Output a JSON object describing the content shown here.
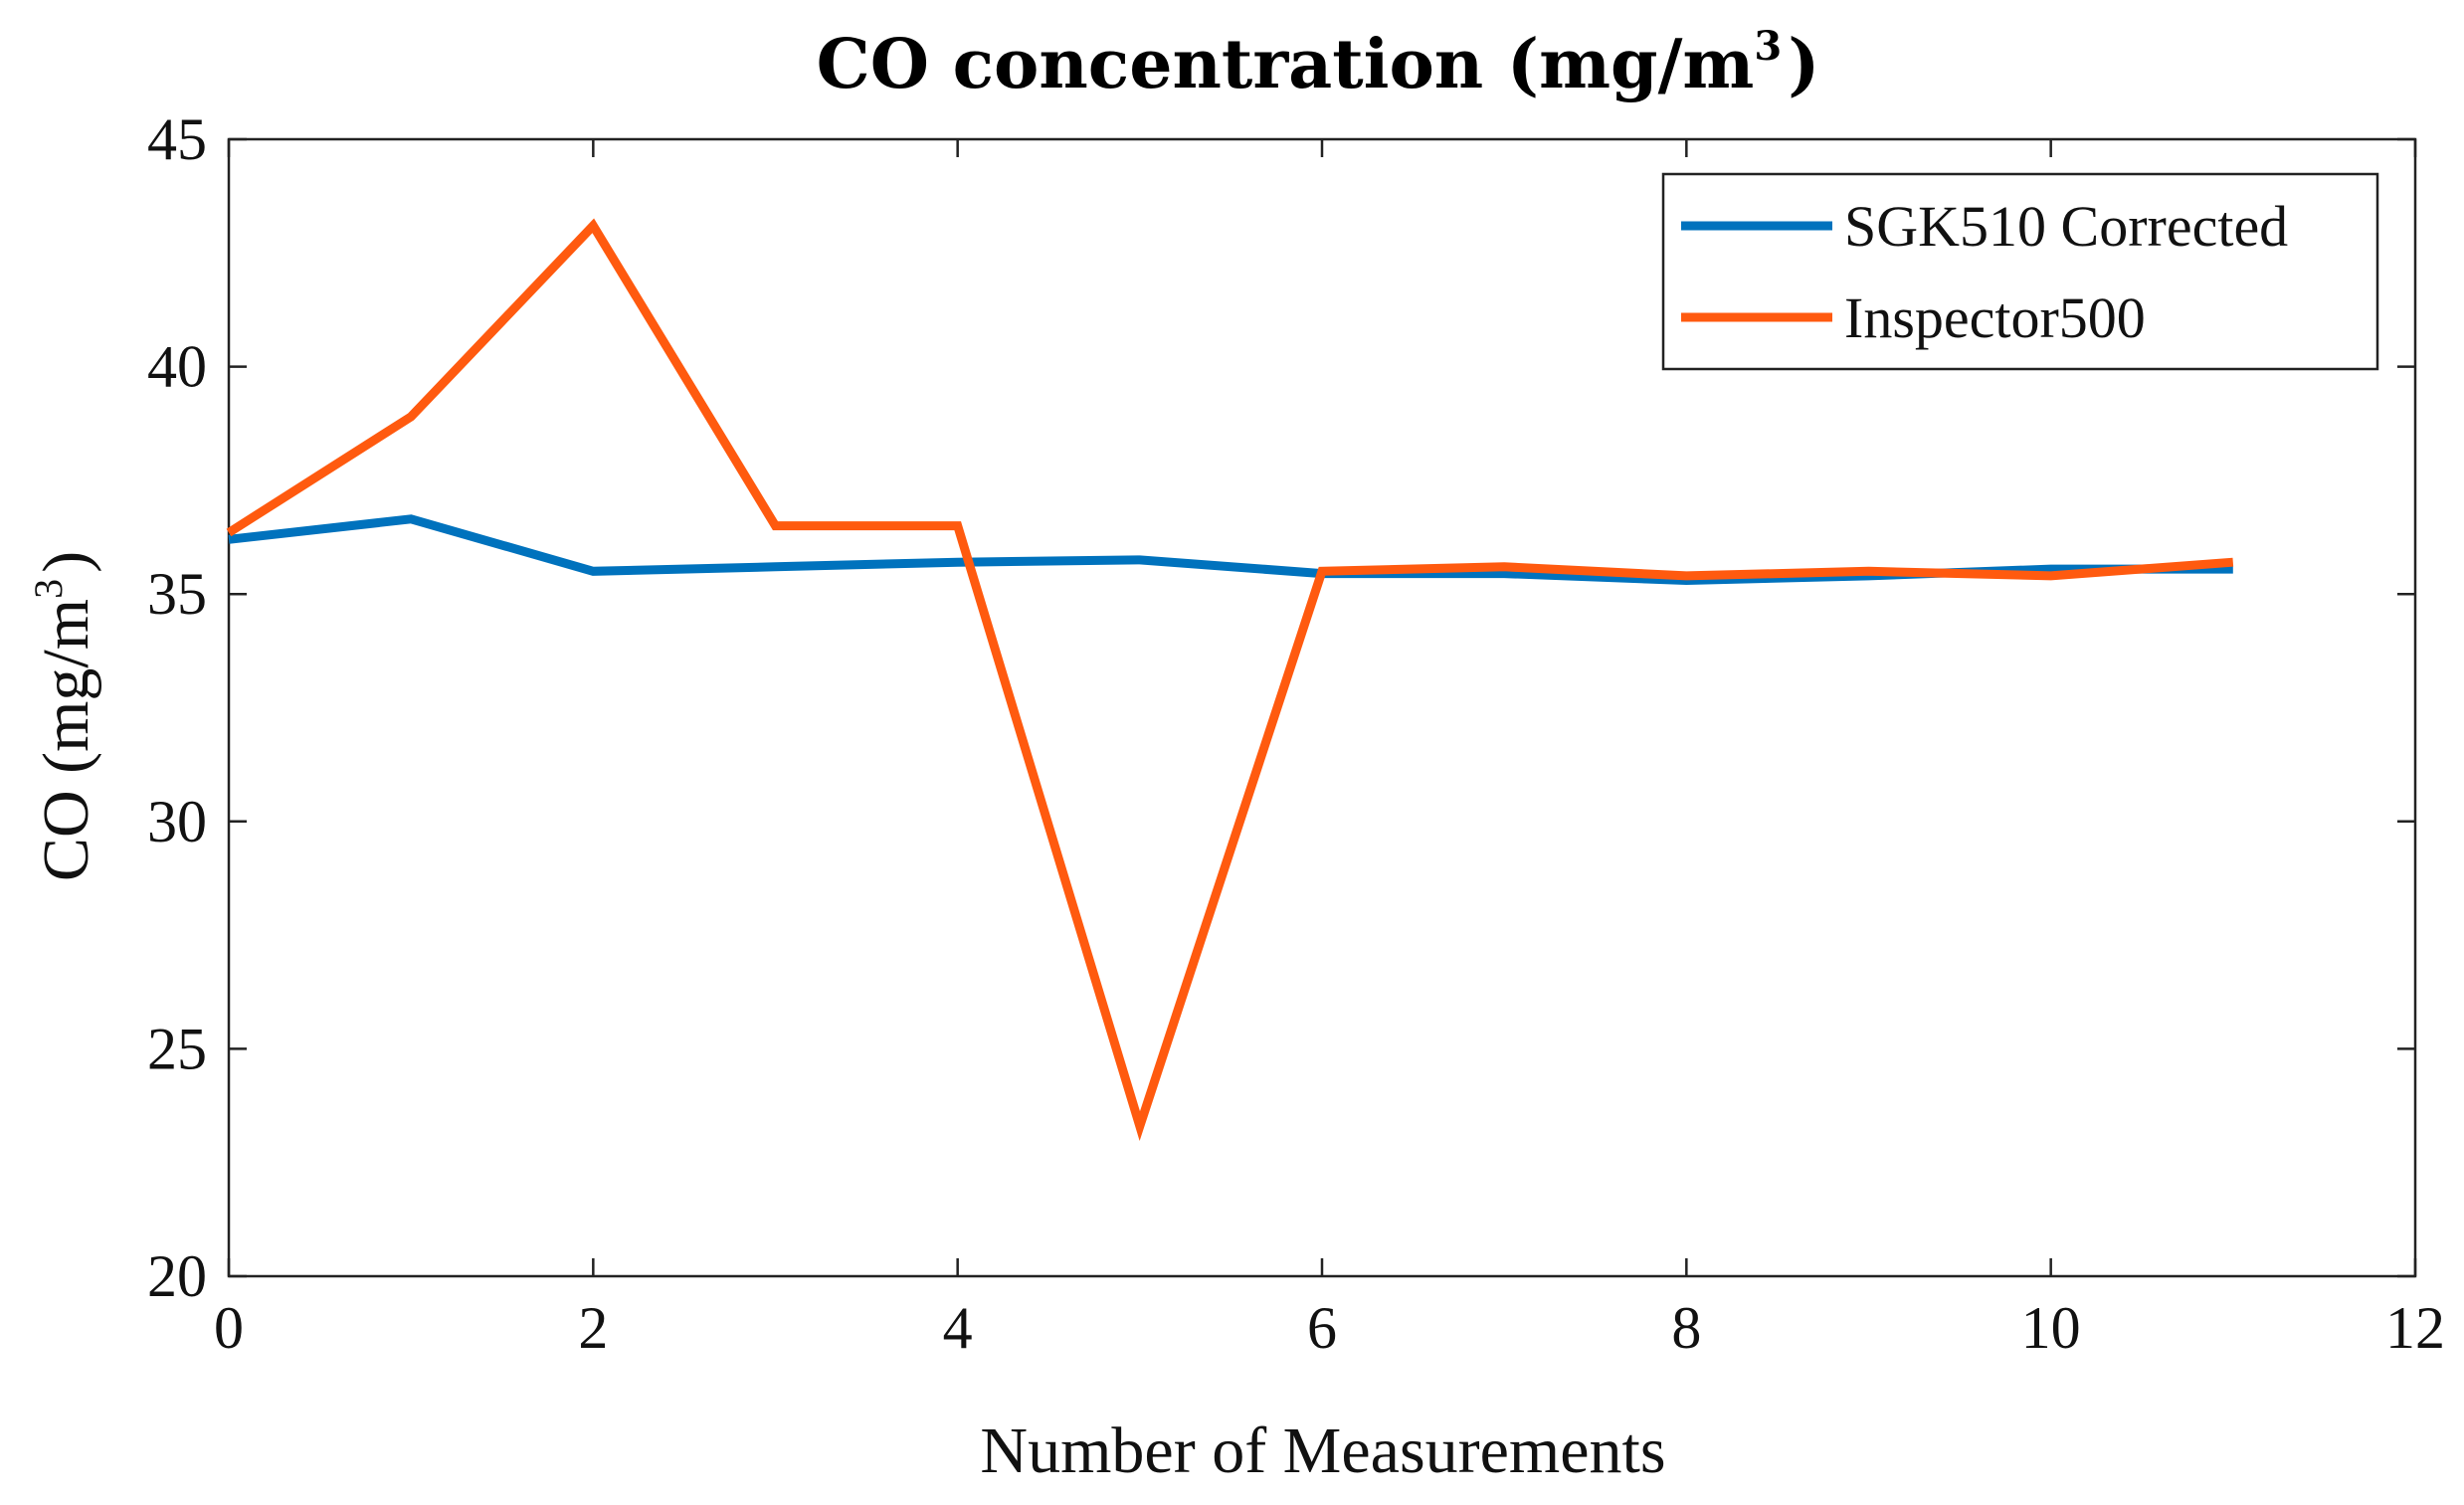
{
  "chart_data": {
    "type": "line",
    "title": "CO concentration (mg/m",
    "title_sup": "3",
    "title_end": ")",
    "xlabel": "Number of Measurements",
    "ylabel": "CO (mg/m",
    "ylabel_sup": "3",
    "ylabel_end": ")",
    "xlim": [
      0,
      12
    ],
    "ylim": [
      20,
      45
    ],
    "xticks": [
      0,
      2,
      4,
      6,
      8,
      10,
      12
    ],
    "yticks": [
      20,
      25,
      30,
      35,
      40,
      45
    ],
    "grid": false,
    "legend_position": "top-right",
    "x": [
      0,
      1,
      2,
      3,
      4,
      5,
      6,
      7,
      8,
      9,
      10,
      11
    ],
    "series": [
      {
        "name": "SGK510 Corrected",
        "color": "#0072BD",
        "values": [
          36.2,
          36.65,
          35.5,
          35.6,
          35.7,
          35.75,
          35.45,
          35.45,
          35.3,
          35.4,
          35.55,
          35.55
        ]
      },
      {
        "name": "Inspector500",
        "color": "#FF5A0F",
        "values": [
          36.35,
          38.9,
          43.1,
          36.5,
          36.5,
          23.3,
          35.5,
          35.6,
          35.4,
          35.5,
          35.4,
          35.7
        ]
      }
    ]
  }
}
